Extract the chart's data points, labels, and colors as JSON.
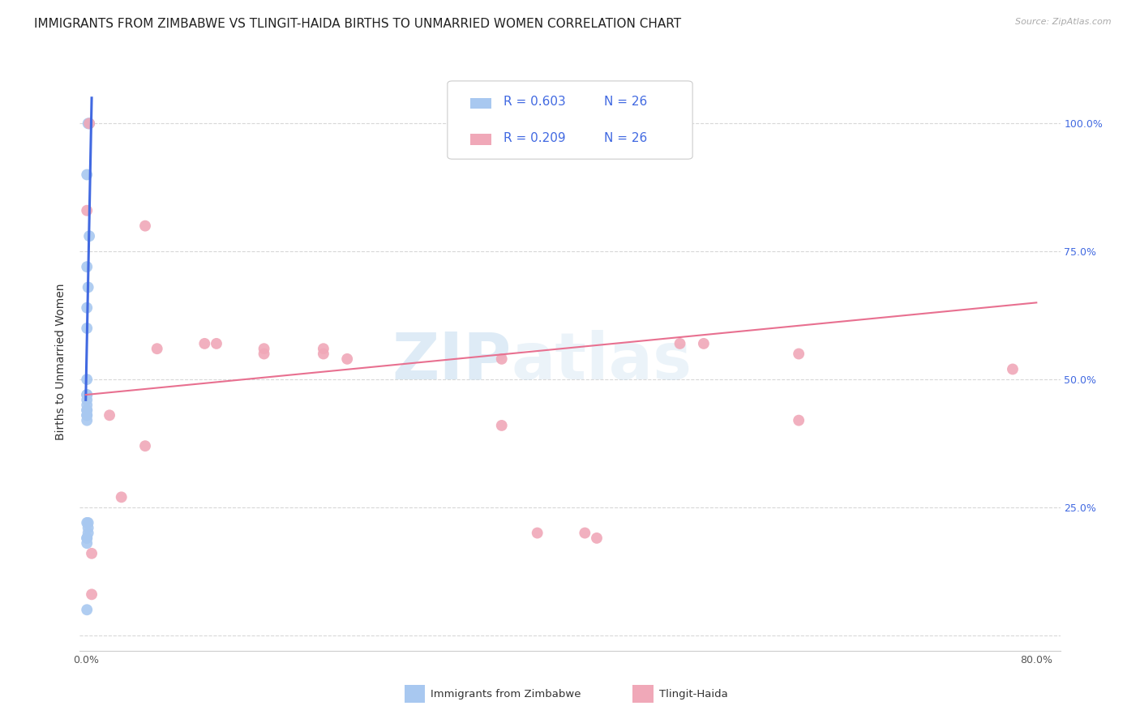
{
  "title": "IMMIGRANTS FROM ZIMBABWE VS TLINGIT-HAIDA BIRTHS TO UNMARRIED WOMEN CORRELATION CHART",
  "source": "Source: ZipAtlas.com",
  "ylabel": "Births to Unmarried Women",
  "blue_R": "R = 0.603",
  "blue_N": "N = 26",
  "pink_R": "R = 0.209",
  "pink_N": "N = 26",
  "legend_label_blue": "Immigrants from Zimbabwe",
  "legend_label_pink": "Tlingit-Haida",
  "blue_scatter_x": [
    0.002,
    0.003,
    0.001,
    0.003,
    0.001,
    0.002,
    0.001,
    0.001,
    0.001,
    0.001,
    0.001,
    0.001,
    0.001,
    0.001,
    0.001,
    0.001,
    0.001,
    0.001,
    0.001,
    0.002,
    0.002,
    0.002,
    0.001,
    0.001,
    0.001,
    0.001
  ],
  "blue_scatter_y": [
    1.0,
    1.0,
    0.9,
    0.78,
    0.72,
    0.68,
    0.64,
    0.6,
    0.5,
    0.47,
    0.47,
    0.46,
    0.45,
    0.44,
    0.44,
    0.43,
    0.43,
    0.42,
    0.22,
    0.22,
    0.21,
    0.2,
    0.19,
    0.19,
    0.18,
    0.05
  ],
  "pink_scatter_x": [
    0.003,
    0.001,
    0.05,
    0.05,
    0.1,
    0.11,
    0.15,
    0.15,
    0.2,
    0.2,
    0.22,
    0.35,
    0.35,
    0.38,
    0.42,
    0.43,
    0.5,
    0.52,
    0.6,
    0.6,
    0.78,
    0.02,
    0.03,
    0.06,
    0.005,
    0.005
  ],
  "pink_scatter_y": [
    1.0,
    0.83,
    0.8,
    0.37,
    0.57,
    0.57,
    0.56,
    0.55,
    0.56,
    0.55,
    0.54,
    0.54,
    0.41,
    0.2,
    0.2,
    0.19,
    0.57,
    0.57,
    0.42,
    0.55,
    0.52,
    0.43,
    0.27,
    0.56,
    0.08,
    0.16
  ],
  "blue_line_x": [
    0.0,
    0.005
  ],
  "blue_line_y": [
    0.46,
    1.05
  ],
  "pink_line_x": [
    0.0,
    0.8
  ],
  "pink_line_y": [
    0.47,
    0.65
  ],
  "blue_color": "#a8c8f0",
  "pink_color": "#f0a8b8",
  "blue_line_color": "#4169e1",
  "pink_line_color": "#e87090",
  "watermark_zip": "ZIP",
  "watermark_atlas": "atlas",
  "background_color": "#ffffff",
  "grid_color": "#d8d8d8",
  "title_fontsize": 11,
  "axis_label_fontsize": 10,
  "tick_fontsize": 9,
  "right_tick_color": "#4169e1",
  "xlim": [
    -0.005,
    0.82
  ],
  "ylim": [
    -0.03,
    1.1
  ],
  "x_tick_vals": [
    0.0,
    0.1,
    0.2,
    0.3,
    0.4,
    0.5,
    0.6,
    0.7,
    0.8
  ],
  "y_tick_vals": [
    0.0,
    0.25,
    0.5,
    0.75,
    1.0
  ],
  "y_tick_labels_right": [
    "",
    "25.0%",
    "50.0%",
    "75.0%",
    "100.0%"
  ]
}
